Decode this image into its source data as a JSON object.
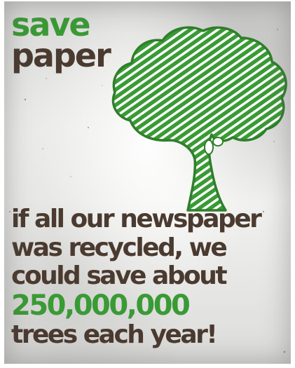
{
  "poster": {
    "title_line1": "save",
    "title_line2": "paper",
    "message_line1": "if all our newspaper",
    "message_line2": "was recycled, we",
    "message_line3": "could save about",
    "highlight_number": "250,000,000",
    "message_line5": "trees each year!"
  },
  "colors": {
    "green": "#3a9a35",
    "brown": "#4a3a2f",
    "background": "#e9e9e7"
  },
  "illustration": "tree-icon"
}
